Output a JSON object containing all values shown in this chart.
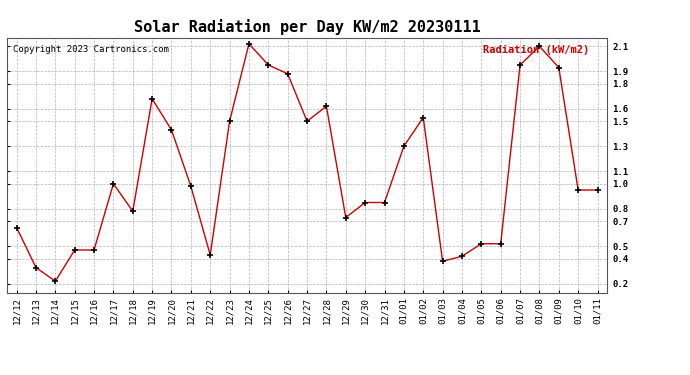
{
  "title": "Solar Radiation per Day KW/m2 20230111",
  "copyright": "Copyright 2023 Cartronics.com",
  "legend_label": "Radiation (kW/m2)",
  "dates": [
    "12/12",
    "12/13",
    "12/14",
    "12/15",
    "12/16",
    "12/17",
    "12/18",
    "12/19",
    "12/20",
    "12/21",
    "12/22",
    "12/23",
    "12/24",
    "12/25",
    "12/26",
    "12/27",
    "12/28",
    "12/29",
    "12/30",
    "12/31",
    "01/01",
    "01/02",
    "01/03",
    "01/04",
    "01/05",
    "01/06",
    "01/07",
    "01/08",
    "01/09",
    "01/10",
    "01/11"
  ],
  "values": [
    0.65,
    0.33,
    0.22,
    0.47,
    0.47,
    1.0,
    0.78,
    1.68,
    1.43,
    0.98,
    0.43,
    1.5,
    2.12,
    1.95,
    1.88,
    1.5,
    1.62,
    0.73,
    0.85,
    0.85,
    1.3,
    1.53,
    0.38,
    0.42,
    0.52,
    0.52,
    1.95,
    2.1,
    1.93,
    0.95,
    0.95
  ],
  "line_color": "#cc0000",
  "marker": "+",
  "marker_color": "#000000",
  "bg_color": "#ffffff",
  "grid_color": "#aaaaaa",
  "ylim": [
    0.13,
    2.17
  ],
  "yticks": [
    0.2,
    0.4,
    0.5,
    0.7,
    0.8,
    1.0,
    1.1,
    1.3,
    1.5,
    1.6,
    1.8,
    1.9,
    2.1
  ],
  "title_fontsize": 11,
  "tick_fontsize": 6.5,
  "legend_fontsize": 7.5,
  "copyright_fontsize": 6.5
}
